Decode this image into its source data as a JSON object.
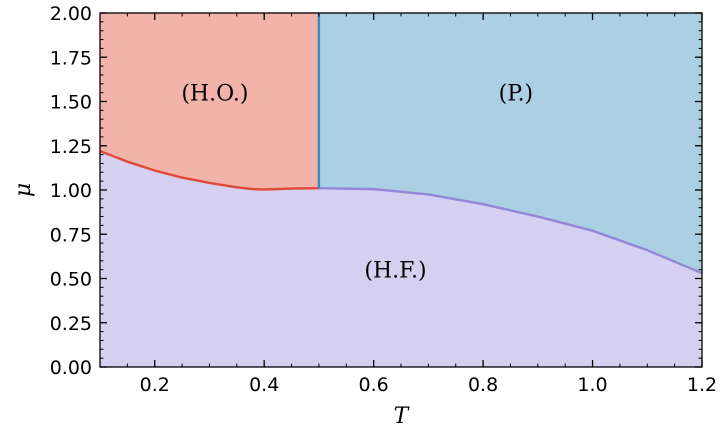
{
  "chart_data": {
    "type": "area",
    "title": "",
    "xlabel": "T",
    "ylabel": "μ",
    "xlim": [
      0.1,
      1.2
    ],
    "ylim": [
      0.0,
      2.0
    ],
    "x_ticks": [
      {
        "value": 0.2,
        "label": "0.2"
      },
      {
        "value": 0.4,
        "label": "0.4"
      },
      {
        "value": 0.6,
        "label": "0.6"
      },
      {
        "value": 0.8,
        "label": "0.8"
      },
      {
        "value": 1.0,
        "label": "1.0"
      },
      {
        "value": 1.2,
        "label": "1.2"
      }
    ],
    "y_ticks": [
      {
        "value": 0.0,
        "label": "0.00"
      },
      {
        "value": 0.25,
        "label": "0.25"
      },
      {
        "value": 0.5,
        "label": "0.50"
      },
      {
        "value": 0.75,
        "label": "0.75"
      },
      {
        "value": 1.0,
        "label": "1.00"
      },
      {
        "value": 1.25,
        "label": "1.25"
      },
      {
        "value": 1.5,
        "label": "1.50"
      },
      {
        "value": 1.75,
        "label": "1.75"
      },
      {
        "value": 2.0,
        "label": "2.00"
      }
    ],
    "grid": false,
    "boundaries": [
      {
        "name": "",
        "color": "#e0483a",
        "x": [
          0.1,
          0.15,
          0.2,
          0.25,
          0.3,
          0.35,
          0.38,
          0.4,
          0.42,
          0.45,
          0.5
        ],
        "y": [
          1.22,
          1.16,
          1.11,
          1.07,
          1.04,
          1.015,
          1.005,
          1.003,
          1.005,
          1.008,
          1.01
        ]
      },
      {
        "name": "",
        "color": "#9487d8",
        "x": [
          0.5,
          0.6,
          0.7,
          0.8,
          0.9,
          1.0,
          1.1,
          1.2
        ],
        "y": [
          1.01,
          1.005,
          0.975,
          0.92,
          0.85,
          0.77,
          0.66,
          0.53
        ]
      },
      {
        "name": "",
        "color": "#3d87c4",
        "x": [
          0.5,
          0.5
        ],
        "y": [
          1.01,
          2.0
        ]
      }
    ],
    "regions": [
      {
        "label": "(H.O.)",
        "color": "#f2b4aa",
        "label_x": 0.31,
        "label_y": 1.55
      },
      {
        "label": "(P.)",
        "color": "#abcfe3",
        "label_x": 0.86,
        "label_y": 1.55
      },
      {
        "label": "(H.F.)",
        "color": "#d5d0ef",
        "label_x": 0.64,
        "label_y": 0.55
      }
    ]
  }
}
